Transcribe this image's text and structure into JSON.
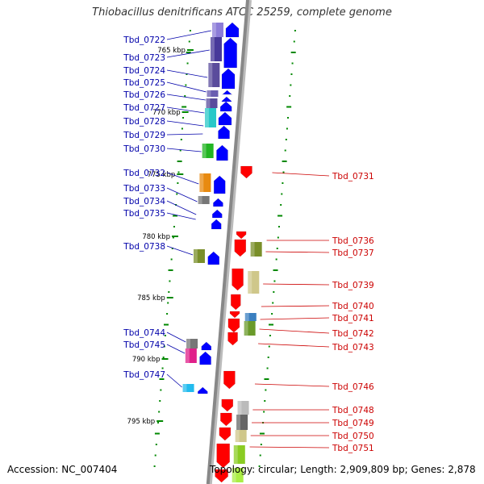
{
  "title": "Thiobacillus denitrificans ATCC 25259, complete genome",
  "footer": {
    "accession": "Accession: NC_007404",
    "summary": "Topology: circular; Length: 2,909,809 bp; Genes: 2,878"
  },
  "colors": {
    "forward_label": "#0000aa",
    "reverse_label": "#cc0000",
    "forward_arrow": "#0000ff",
    "reverse_arrow": "#ff0000",
    "backbone": "#888888",
    "tick_dots": "#008800"
  },
  "scale_labels": [
    "765 kbp",
    "770 kbp",
    "775 kbp",
    "780 kbp",
    "785 kbp",
    "790 kbp",
    "795 kbp"
  ],
  "forward_genes": [
    "Tbd_0722",
    "Tbd_0723",
    "Tbd_0724",
    "Tbd_0725",
    "Tbd_0726",
    "Tbd_0727",
    "Tbd_0728",
    "Tbd_0729",
    "Tbd_0730",
    "Tbd_0732",
    "Tbd_0733",
    "Tbd_0734",
    "Tbd_0735",
    "Tbd_0738",
    "Tbd_0744",
    "Tbd_0745",
    "Tbd_0747"
  ],
  "reverse_genes": [
    "Tbd_0731",
    "Tbd_0736",
    "Tbd_0737",
    "Tbd_0739",
    "Tbd_0740",
    "Tbd_0741",
    "Tbd_0742",
    "Tbd_0743",
    "Tbd_0746",
    "Tbd_0748",
    "Tbd_0749",
    "Tbd_0750",
    "Tbd_0751"
  ]
}
